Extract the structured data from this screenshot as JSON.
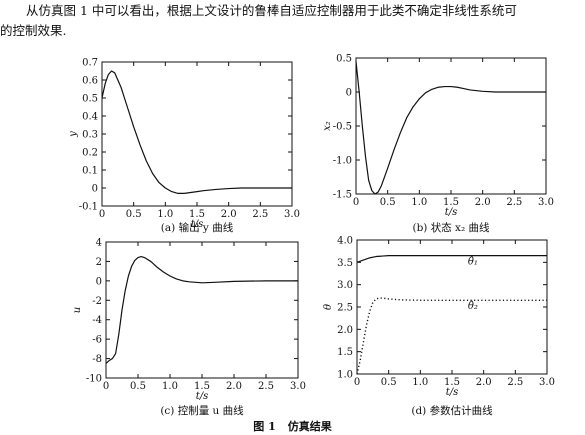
{
  "paragraph": {
    "line1": "从仿真图 1 中可以看出，根据上文设计的鲁棒自适应控制器用于此类不确定非线性系统可",
    "line2": "的控制效果."
  },
  "figure": {
    "number": "图 1",
    "title": "仿真结果"
  },
  "chart_data": [
    {
      "type": "line",
      "id": "a",
      "caption": "(a) 输出 y 曲线",
      "xlabel": "t/s",
      "ylabel": "y",
      "xlim": [
        0,
        3.0
      ],
      "ylim": [
        -0.1,
        0.7
      ],
      "xticks": [
        "0",
        "0.5",
        "1.0",
        "1.5",
        "2.0",
        "2.5",
        "3.0"
      ],
      "yticks": [
        "-0.1",
        "0",
        "0.1",
        "0.2",
        "0.3",
        "0.4",
        "0.5",
        "0.6",
        "0.7"
      ],
      "series": [
        {
          "style": "solid",
          "x": [
            0,
            0.05,
            0.1,
            0.15,
            0.2,
            0.3,
            0.4,
            0.5,
            0.6,
            0.7,
            0.8,
            0.9,
            1.0,
            1.1,
            1.2,
            1.3,
            1.4,
            1.5,
            1.6,
            1.8,
            2.0,
            2.2,
            2.5,
            2.8,
            3.0
          ],
          "y": [
            0.5,
            0.58,
            0.63,
            0.65,
            0.64,
            0.56,
            0.45,
            0.34,
            0.24,
            0.15,
            0.08,
            0.03,
            0.0,
            -0.02,
            -0.03,
            -0.03,
            -0.025,
            -0.02,
            -0.015,
            -0.008,
            -0.003,
            0.0,
            0.0,
            0.0,
            0.0
          ]
        }
      ]
    },
    {
      "type": "line",
      "id": "b",
      "caption": "(b) 状态 x₂ 曲线",
      "xlabel": "t/s",
      "ylabel": "x₂",
      "xlim": [
        0,
        3.0
      ],
      "ylim": [
        -1.5,
        0.5
      ],
      "xticks": [
        "0",
        "0.5",
        "1.0",
        "1.5",
        "2.0",
        "2.5",
        "3.0"
      ],
      "yticks": [
        "-1.5",
        "-1.0",
        "-0.5",
        "0",
        "0.5"
      ],
      "series": [
        {
          "style": "solid",
          "x": [
            0,
            0.05,
            0.1,
            0.15,
            0.2,
            0.25,
            0.3,
            0.35,
            0.4,
            0.5,
            0.6,
            0.7,
            0.8,
            0.9,
            1.0,
            1.1,
            1.2,
            1.3,
            1.4,
            1.5,
            1.6,
            1.7,
            1.8,
            2.0,
            2.2,
            2.5,
            3.0
          ],
          "y": [
            0.45,
            0.0,
            -0.5,
            -0.95,
            -1.3,
            -1.45,
            -1.5,
            -1.47,
            -1.38,
            -1.12,
            -0.85,
            -0.6,
            -0.38,
            -0.22,
            -0.1,
            -0.01,
            0.04,
            0.07,
            0.08,
            0.08,
            0.07,
            0.05,
            0.03,
            0.01,
            0.0,
            0.0,
            0.0
          ]
        }
      ]
    },
    {
      "type": "line",
      "id": "c",
      "caption": "(c) 控制量 u 曲线",
      "xlabel": "t/s",
      "ylabel": "u",
      "xlim": [
        0,
        3.0
      ],
      "ylim": [
        -10,
        4
      ],
      "xticks": [
        "0",
        "0.5",
        "1.0",
        "1.5",
        "2.0",
        "2.5",
        "3.0"
      ],
      "yticks": [
        "-10",
        "-8",
        "-6",
        "-4",
        "-2",
        "0",
        "2",
        "4"
      ],
      "series": [
        {
          "style": "solid",
          "x": [
            0,
            0.05,
            0.1,
            0.15,
            0.2,
            0.25,
            0.3,
            0.35,
            0.4,
            0.45,
            0.5,
            0.55,
            0.6,
            0.7,
            0.8,
            0.9,
            1.0,
            1.1,
            1.2,
            1.3,
            1.5,
            1.7,
            2.0,
            2.5,
            3.0
          ],
          "y": [
            -8.5,
            -8.2,
            -8.0,
            -7.5,
            -5.5,
            -3.0,
            -1.0,
            0.5,
            1.5,
            2.1,
            2.4,
            2.5,
            2.4,
            2.0,
            1.4,
            0.9,
            0.5,
            0.2,
            0.0,
            -0.1,
            -0.2,
            -0.15,
            -0.05,
            0.0,
            0.0
          ]
        }
      ]
    },
    {
      "type": "line",
      "id": "d",
      "caption": "(d) 参数估计曲线",
      "xlabel": "t/s",
      "ylabel": "θ",
      "xlim": [
        0,
        3.0
      ],
      "ylim": [
        1.0,
        4.0
      ],
      "xticks": [
        "0",
        "0.5",
        "1.0",
        "1.5",
        "2.0",
        "2.5",
        "3.0"
      ],
      "yticks": [
        "1.0",
        "1.5",
        "2.0",
        "2.5",
        "3.0",
        "3.5",
        "4.0"
      ],
      "annotations": [
        {
          "text": "θ̂₁",
          "x": 1.75,
          "y": 3.45
        },
        {
          "text": "θ̂₂",
          "x": 1.75,
          "y": 2.45
        }
      ],
      "series": [
        {
          "name": "θ̂₁",
          "style": "solid",
          "x": [
            0,
            0.1,
            0.2,
            0.3,
            0.4,
            0.5,
            0.7,
            1.0,
            1.5,
            2.0,
            2.5,
            3.0
          ],
          "y": [
            3.5,
            3.55,
            3.6,
            3.63,
            3.64,
            3.65,
            3.65,
            3.65,
            3.65,
            3.65,
            3.65,
            3.65
          ]
        },
        {
          "name": "θ̂₂",
          "style": "dotted",
          "x": [
            0,
            0.05,
            0.1,
            0.15,
            0.2,
            0.25,
            0.3,
            0.35,
            0.4,
            0.5,
            0.7,
            1.0,
            1.5,
            2.0,
            2.5,
            3.0
          ],
          "y": [
            1.0,
            1.3,
            1.7,
            2.1,
            2.4,
            2.6,
            2.68,
            2.7,
            2.7,
            2.68,
            2.66,
            2.65,
            2.65,
            2.65,
            2.65,
            2.65
          ]
        }
      ]
    }
  ]
}
